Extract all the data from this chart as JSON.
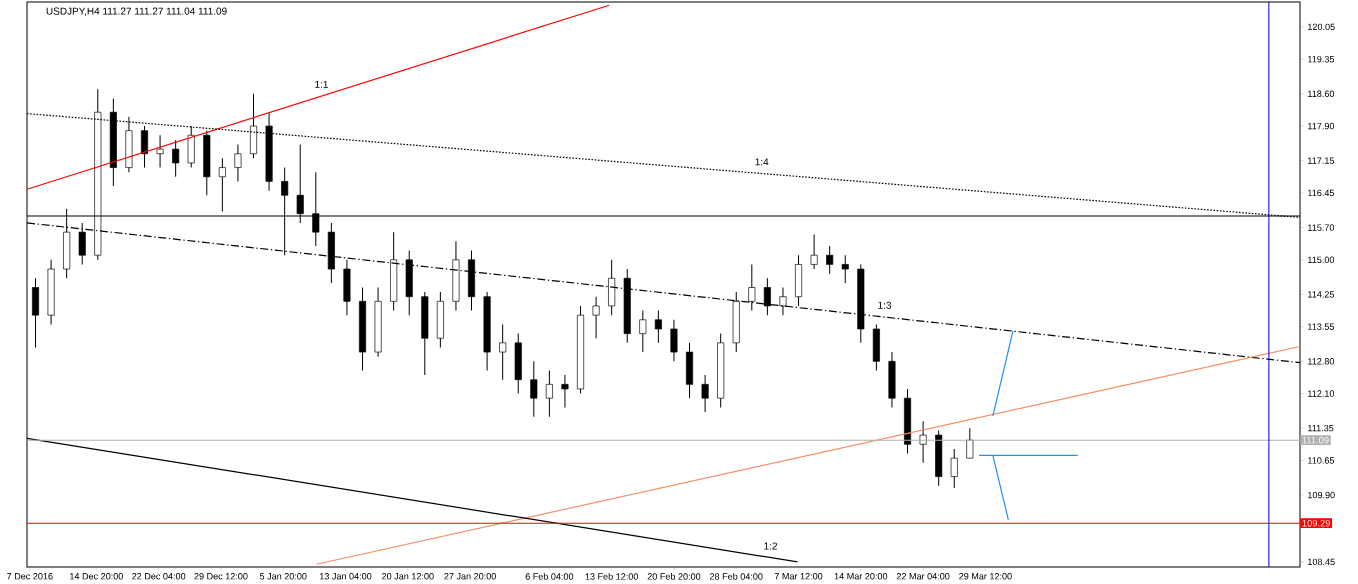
{
  "chart_data": {
    "type": "candlestick",
    "title": "USDJPY,H4  111.27 111.27 111.04 111.09",
    "color": "#000000",
    "x": [
      "2016-12-07T16:00",
      "2016-12-09T12:00",
      "2016-12-11T08:00",
      "2016-12-13T04:00",
      "2016-12-15T00:00",
      "2016-12-16T20:00",
      "2016-12-18T16:00",
      "2016-12-20T12:00",
      "2016-12-22T08:00",
      "2016-12-24T04:00",
      "2016-12-26T00:00",
      "2016-12-27T20:00",
      "2016-12-29T16:00",
      "2016-12-31T12:00",
      "2017-01-02T08:00",
      "2017-01-04T04:00",
      "2017-01-06T00:00",
      "2017-01-07T20:00",
      "2017-01-09T16:00",
      "2017-01-11T12:00",
      "2017-01-13T08:00",
      "2017-01-15T04:00",
      "2017-01-17T00:00",
      "2017-01-18T20:00",
      "2017-01-20T16:00",
      "2017-01-22T12:00",
      "2017-01-24T08:00",
      "2017-01-26T04:00",
      "2017-01-28T00:00",
      "2017-01-29T20:00",
      "2017-01-31T16:00",
      "2017-02-02T12:00",
      "2017-02-04T08:00",
      "2017-02-06T04:00",
      "2017-02-08T00:00",
      "2017-02-09T20:00",
      "2017-02-11T16:00",
      "2017-02-13T12:00",
      "2017-02-15T08:00",
      "2017-02-17T04:00",
      "2017-02-19T00:00",
      "2017-02-20T20:00",
      "2017-02-22T16:00",
      "2017-02-24T12:00",
      "2017-02-26T08:00",
      "2017-02-28T04:00",
      "2017-03-02T00:00",
      "2017-03-03T20:00",
      "2017-03-05T16:00",
      "2017-03-07T12:00",
      "2017-03-09T08:00",
      "2017-03-11T04:00",
      "2017-03-13T00:00",
      "2017-03-14T20:00",
      "2017-03-16T16:00",
      "2017-03-18T12:00",
      "2017-03-20T08:00",
      "2017-03-22T04:00",
      "2017-03-24T00:00",
      "2017-03-25T20:00",
      "2017-03-27T16:00"
    ],
    "ohlc": [
      [
        114.4,
        114.6,
        113.1,
        113.8
      ],
      [
        113.8,
        115.0,
        113.6,
        114.8
      ],
      [
        114.8,
        116.1,
        114.6,
        115.6
      ],
      [
        115.6,
        115.8,
        114.9,
        115.1
      ],
      [
        115.1,
        118.7,
        115.0,
        118.2
      ],
      [
        118.2,
        118.5,
        116.6,
        117.0
      ],
      [
        117.0,
        118.1,
        116.9,
        117.8
      ],
      [
        117.8,
        117.9,
        117.0,
        117.3
      ],
      [
        117.3,
        117.7,
        117.0,
        117.4
      ],
      [
        117.4,
        117.6,
        116.8,
        117.1
      ],
      [
        117.1,
        117.9,
        117.0,
        117.7
      ],
      [
        117.7,
        117.8,
        116.4,
        116.8
      ],
      [
        116.8,
        117.2,
        116.05,
        117.0
      ],
      [
        117.0,
        117.5,
        116.7,
        117.3
      ],
      [
        117.3,
        118.6,
        117.2,
        117.9
      ],
      [
        117.9,
        118.2,
        116.5,
        116.7
      ],
      [
        116.7,
        117.0,
        115.1,
        116.4
      ],
      [
        116.4,
        117.5,
        115.8,
        116.0
      ],
      [
        116.0,
        116.9,
        115.3,
        115.6
      ],
      [
        115.6,
        115.8,
        114.5,
        114.8
      ],
      [
        114.8,
        115.0,
        113.8,
        114.1
      ],
      [
        114.1,
        114.4,
        112.6,
        113.0
      ],
      [
        113.0,
        114.4,
        112.9,
        114.1
      ],
      [
        114.1,
        115.6,
        113.9,
        115.0
      ],
      [
        115.0,
        115.2,
        113.8,
        114.2
      ],
      [
        114.2,
        114.3,
        112.5,
        113.3
      ],
      [
        113.3,
        114.3,
        113.1,
        114.1
      ],
      [
        114.1,
        115.4,
        113.9,
        115.0
      ],
      [
        115.0,
        115.2,
        113.9,
        114.2
      ],
      [
        114.2,
        114.3,
        112.6,
        113.0
      ],
      [
        113.0,
        113.6,
        112.4,
        113.2
      ],
      [
        113.2,
        113.4,
        112.1,
        112.4
      ],
      [
        112.4,
        112.8,
        111.6,
        112.0
      ],
      [
        112.0,
        112.6,
        111.6,
        112.3
      ],
      [
        112.3,
        112.5,
        111.8,
        112.2
      ],
      [
        112.2,
        114.0,
        112.1,
        113.8
      ],
      [
        113.8,
        114.2,
        113.3,
        114.0
      ],
      [
        114.0,
        115.0,
        113.8,
        114.6
      ],
      [
        114.6,
        114.8,
        113.2,
        113.4
      ],
      [
        113.4,
        113.9,
        113.0,
        113.7
      ],
      [
        113.7,
        113.9,
        113.2,
        113.5
      ],
      [
        113.5,
        113.7,
        112.8,
        113.0
      ],
      [
        113.0,
        113.2,
        112.0,
        112.3
      ],
      [
        112.3,
        112.5,
        111.7,
        112.0
      ],
      [
        112.0,
        113.4,
        111.8,
        113.2
      ],
      [
        113.2,
        114.3,
        113.0,
        114.1
      ],
      [
        114.1,
        114.9,
        113.9,
        114.4
      ],
      [
        114.4,
        114.6,
        113.8,
        114.0
      ],
      [
        114.0,
        114.4,
        113.8,
        114.2
      ],
      [
        114.2,
        115.1,
        114.0,
        114.9
      ],
      [
        114.9,
        115.55,
        114.8,
        115.1
      ],
      [
        115.1,
        115.3,
        114.7,
        114.9
      ],
      [
        114.9,
        115.1,
        114.5,
        114.8
      ],
      [
        114.8,
        114.9,
        113.2,
        113.5
      ],
      [
        113.5,
        113.6,
        112.6,
        112.8
      ],
      [
        112.8,
        113.0,
        111.8,
        112.0
      ],
      [
        112.0,
        112.2,
        110.8,
        111.0
      ],
      [
        111.0,
        111.5,
        110.6,
        111.2
      ],
      [
        111.2,
        111.3,
        110.1,
        110.3
      ],
      [
        110.3,
        110.9,
        110.05,
        110.7
      ],
      [
        110.7,
        111.35,
        110.7,
        111.09
      ]
    ],
    "series": [
      {
        "type": "line",
        "color": "#ff0000",
        "line_style": "solid",
        "x": [
          "2016-12-06T16:00",
          "2017-02-13T05:00"
        ],
        "values": [
          116.53,
          120.52
        ]
      },
      {
        "type": "line",
        "color": "#000000",
        "line_style": "dotted",
        "x": [
          "2016-12-06T16:00",
          "2017-05-05T13:00"
        ],
        "values": [
          118.17,
          115.92
        ]
      },
      {
        "type": "line",
        "color": "#000000",
        "line_style": "dashed",
        "x": [
          "2016-12-06T16:00",
          "2017-05-05T13:00"
        ],
        "values": [
          115.8,
          112.77
        ]
      },
      {
        "type": "line",
        "color": "#f4906a",
        "line_style": "solid",
        "x": [
          "2017-01-09T18:00",
          "2017-05-05T13:00"
        ],
        "values": [
          108.4,
          113.12
        ]
      },
      {
        "type": "line",
        "color": "#000000",
        "line_style": "solid",
        "x": [
          "2016-12-06T16:00",
          "2017-03-07T09:00"
        ],
        "values": [
          111.13,
          108.45
        ]
      },
      {
        "type": "line",
        "color": "#1e90ff",
        "line_style": "solid",
        "x": [
          "2017-03-30T09:00",
          "2017-04-01T18:00"
        ],
        "values": [
          111.61,
          113.46
        ]
      },
      {
        "type": "line",
        "color": "#1e90ff",
        "line_style": "solid",
        "x": [
          "2017-03-30T09:00",
          "2017-04-01T05:00"
        ],
        "values": [
          110.76,
          109.36
        ]
      },
      {
        "type": "line",
        "color": "#1e90ff",
        "line_style": "solid",
        "x": [
          "2017-03-28T18:00",
          "2017-04-09T09:00"
        ],
        "values": [
          110.76,
          110.76
        ]
      }
    ],
    "ref_lines": [
      {
        "axis": "y",
        "value": 115.95,
        "color": "#000000"
      },
      {
        "axis": "y",
        "value": 111.09,
        "label": "111.09",
        "color": "#b0b0b0"
      },
      {
        "axis": "y",
        "value": 109.29,
        "label": "109.29",
        "color": "#ff0000"
      },
      {
        "axis": "x",
        "value": "2017-05-01T21:00",
        "color": "#0000cd"
      }
    ],
    "annotations": [
      {
        "text": "1:1",
        "x": "2017-01-10T08:00",
        "y": 118.55
      },
      {
        "text": "1:4",
        "x": "2017-03-03T04:00",
        "y": 116.87
      },
      {
        "text": "1:3",
        "x": "2017-03-17T15:00",
        "y": 113.76
      },
      {
        "text": "1:2",
        "x": "2017-03-04T05:00",
        "y": 108.54
      }
    ],
    "xlim": [
      "2016-12-06T16:00",
      "2017-05-05T13:00"
    ],
    "ylim": [
      108.34,
      120.59
    ],
    "xticks": [
      {
        "value": "2016-12-07",
        "label": "7 Dec 2016"
      },
      {
        "value": "2016-12-14T20:00",
        "label": "14 Dec 20:00"
      },
      {
        "value": "2016-12-22T04:00",
        "label": "22 Dec 04:00"
      },
      {
        "value": "2016-12-29T12:00",
        "label": "29 Dec 12:00"
      },
      {
        "value": "2017-01-05T20:00",
        "label": "5 Jan 20:00"
      },
      {
        "value": "2017-01-13T04:00",
        "label": "13 Jan 04:00"
      },
      {
        "value": "2017-01-20T12:00",
        "label": "20 Jan 12:00"
      },
      {
        "value": "2017-01-27T20:00",
        "label": "27 Jan 20:00"
      },
      {
        "value": "2017-02-06T04:00",
        "label": "6 Feb 04:00"
      },
      {
        "value": "2017-02-13T12:00",
        "label": "13 Feb 12:00"
      },
      {
        "value": "2017-02-20T20:00",
        "label": "20 Feb 20:00"
      },
      {
        "value": "2017-02-28T04:00",
        "label": "28 Feb 04:00"
      },
      {
        "value": "2017-03-07T12:00",
        "label": "7 Mar 12:00"
      },
      {
        "value": "2017-03-14T20:00",
        "label": "14 Mar 20:00"
      },
      {
        "value": "2017-03-22T04:00",
        "label": "22 Mar 04:00"
      },
      {
        "value": "2017-03-29T12:00",
        "label": "29 Mar 12:00"
      }
    ],
    "yticks": [
      120.05,
      119.35,
      {
        "value": 118.6,
        "label": "118.60"
      },
      {
        "value": 117.9,
        "label": "117.90"
      },
      117.15,
      116.45,
      {
        "value": 115.7,
        "label": "115.70"
      },
      {
        "value": 115.0,
        "label": "115.00"
      },
      114.25,
      113.55,
      {
        "value": 112.8,
        "label": "112.80"
      },
      {
        "value": 112.1,
        "label": "112.10"
      },
      111.35,
      110.65,
      {
        "value": 109.9,
        "label": "109.90"
      },
      108.45
    ],
    "grid": false
  }
}
